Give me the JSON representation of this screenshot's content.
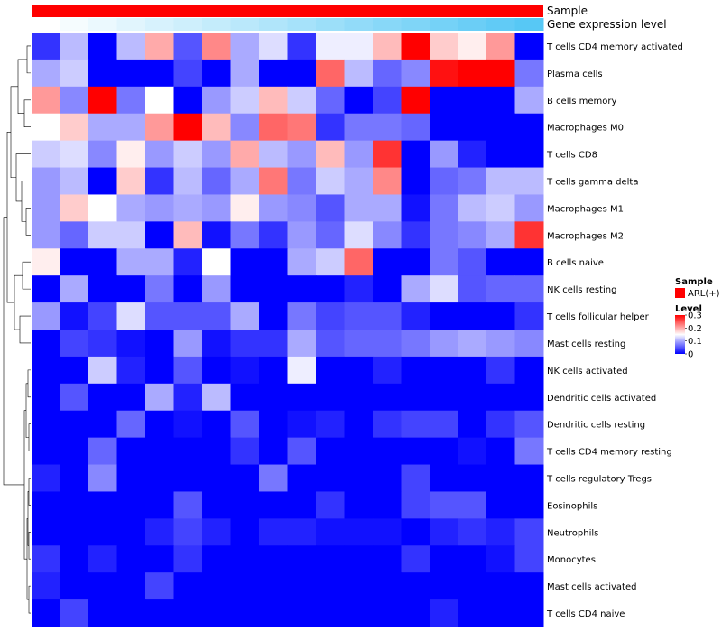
{
  "chart_data": {
    "type": "heatmap",
    "title": "",
    "annotation_tracks": [
      {
        "name": "Sample",
        "label": "Sample",
        "value": "ARL(+)",
        "color": "#ff0000"
      },
      {
        "name": "Gene expression level",
        "label": "Gene expression level",
        "low_color": "#ffffff",
        "high_color": "#57c8f5"
      }
    ],
    "rows": [
      "T cells CD4 memory activated",
      "Plasma cells",
      "B cells memory",
      "Macrophages M0",
      "T cells CD8",
      "T cells gamma delta",
      "Macrophages M1",
      "Macrophages M2",
      "B cells naive",
      "NK cells resting",
      "T cells follicular helper",
      "Mast cells resting",
      "NK cells activated",
      "Dendritic cells activated",
      "Dendritic cells resting",
      "T cells CD4 memory resting",
      "T cells regulatory  Tregs",
      "Eosinophils",
      "Neutrophils",
      "Monocytes",
      "Mast cells activated",
      "T cells CD4 naive"
    ],
    "n_columns": 18,
    "values": [
      [
        0.03,
        0.11,
        0.0,
        0.11,
        0.2,
        0.05,
        0.22,
        0.1,
        0.13,
        0.03,
        0.14,
        0.14,
        0.19,
        0.3,
        0.18,
        0.16,
        0.21,
        0.0
      ],
      [
        0.1,
        0.12,
        0.0,
        0.0,
        0.0,
        0.04,
        0.0,
        0.1,
        0.0,
        0.0,
        0.24,
        0.11,
        0.06,
        0.08,
        0.29,
        0.3,
        0.3,
        0.07
      ],
      [
        0.21,
        0.08,
        0.3,
        0.07,
        0.15,
        0.0,
        0.09,
        0.12,
        0.19,
        0.12,
        0.06,
        0.0,
        0.04,
        0.3,
        0.0,
        0.0,
        0.0,
        0.1
      ],
      [
        0.15,
        0.18,
        0.1,
        0.1,
        0.21,
        0.3,
        0.19,
        0.08,
        0.24,
        0.23,
        0.03,
        0.07,
        0.07,
        0.06,
        0.0,
        0.0,
        0.0,
        0.0
      ],
      [
        0.12,
        0.13,
        0.08,
        0.16,
        0.09,
        0.12,
        0.09,
        0.2,
        0.11,
        0.09,
        0.19,
        0.09,
        0.27,
        0.0,
        0.09,
        0.02,
        0.0,
        0.0
      ],
      [
        0.09,
        0.11,
        0.0,
        0.18,
        0.03,
        0.11,
        0.06,
        0.1,
        0.23,
        0.07,
        0.12,
        0.1,
        0.22,
        0.0,
        0.06,
        0.07,
        0.11,
        0.11
      ],
      [
        0.09,
        0.18,
        0.15,
        0.1,
        0.09,
        0.1,
        0.09,
        0.16,
        0.09,
        0.08,
        0.05,
        0.1,
        0.1,
        0.01,
        0.07,
        0.11,
        0.12,
        0.09
      ],
      [
        0.09,
        0.06,
        0.12,
        0.12,
        0.0,
        0.19,
        0.01,
        0.07,
        0.03,
        0.09,
        0.06,
        0.13,
        0.08,
        0.03,
        0.07,
        0.08,
        0.1,
        0.27
      ],
      [
        0.16,
        0.0,
        0.0,
        0.1,
        0.1,
        0.02,
        0.15,
        0.0,
        0.0,
        0.1,
        0.12,
        0.24,
        0.0,
        0.0,
        0.07,
        0.05,
        0.0,
        0.0
      ],
      [
        0.0,
        0.1,
        0.0,
        0.0,
        0.07,
        0.0,
        0.09,
        0.0,
        0.0,
        0.0,
        0.0,
        0.02,
        0.0,
        0.1,
        0.13,
        0.05,
        0.06,
        0.06
      ],
      [
        0.09,
        0.01,
        0.04,
        0.13,
        0.05,
        0.05,
        0.05,
        0.1,
        0.0,
        0.07,
        0.04,
        0.05,
        0.05,
        0.02,
        0.0,
        0.0,
        0.0,
        0.03
      ],
      [
        0.0,
        0.04,
        0.03,
        0.01,
        0.0,
        0.09,
        0.01,
        0.03,
        0.03,
        0.1,
        0.05,
        0.06,
        0.06,
        0.07,
        0.09,
        0.1,
        0.09,
        0.08
      ],
      [
        0.0,
        0.0,
        0.12,
        0.02,
        0.0,
        0.05,
        0.0,
        0.01,
        0.0,
        0.14,
        0.0,
        0.0,
        0.02,
        0.0,
        0.0,
        0.0,
        0.03,
        0.0
      ],
      [
        0.0,
        0.05,
        0.0,
        0.0,
        0.1,
        0.02,
        0.11,
        0.0,
        0.0,
        0.0,
        0.0,
        0.0,
        0.0,
        0.0,
        0.0,
        0.0,
        0.0,
        0.0
      ],
      [
        0.0,
        0.0,
        0.0,
        0.06,
        0.0,
        0.01,
        0.0,
        0.05,
        0.0,
        0.01,
        0.02,
        0.0,
        0.03,
        0.04,
        0.04,
        0.0,
        0.03,
        0.05
      ],
      [
        0.0,
        0.0,
        0.06,
        0.0,
        0.0,
        0.0,
        0.0,
        0.03,
        0.0,
        0.05,
        0.0,
        0.0,
        0.0,
        0.0,
        0.0,
        0.01,
        0.0,
        0.07
      ],
      [
        0.02,
        0.0,
        0.08,
        0.0,
        0.0,
        0.0,
        0.0,
        0.0,
        0.07,
        0.0,
        0.0,
        0.0,
        0.0,
        0.04,
        0.0,
        0.0,
        0.0,
        0.0
      ],
      [
        0.0,
        0.0,
        0.0,
        0.0,
        0.0,
        0.05,
        0.0,
        0.0,
        0.0,
        0.0,
        0.03,
        0.0,
        0.0,
        0.04,
        0.05,
        0.05,
        0.0,
        0.0
      ],
      [
        0.0,
        0.0,
        0.0,
        0.0,
        0.02,
        0.04,
        0.02,
        0.0,
        0.02,
        0.02,
        0.01,
        0.01,
        0.01,
        0.0,
        0.02,
        0.03,
        0.02,
        0.04
      ],
      [
        0.03,
        0.0,
        0.02,
        0.0,
        0.0,
        0.03,
        0.0,
        0.0,
        0.0,
        0.0,
        0.0,
        0.0,
        0.0,
        0.03,
        0.0,
        0.0,
        0.01,
        0.04
      ],
      [
        0.02,
        0.0,
        0.0,
        0.0,
        0.04,
        0.0,
        0.0,
        0.0,
        0.0,
        0.0,
        0.0,
        0.0,
        0.0,
        0.0,
        0.0,
        0.0,
        0.0,
        0.0
      ],
      [
        0.0,
        0.04,
        0.0,
        0.0,
        0.0,
        0.0,
        0.0,
        0.0,
        0.0,
        0.0,
        0.0,
        0.0,
        0.0,
        0.0,
        0.02,
        0.0,
        0.0,
        0.0
      ]
    ],
    "color_scale": {
      "min": 0,
      "max": 0.3,
      "low": "#0000ff",
      "mid": "#ffffff",
      "mid_value": 0.15,
      "high": "#ff0000"
    },
    "legend": {
      "position": "right",
      "sample_title": "Sample",
      "sample_entry": "ARL(+)",
      "level_title": "Level",
      "level_ticks": [
        "0.3",
        "0.2",
        "0.1",
        "0"
      ],
      "level_tick_values": [
        0.3,
        0.2,
        0.1,
        0
      ]
    },
    "row_dendrogram": true
  }
}
